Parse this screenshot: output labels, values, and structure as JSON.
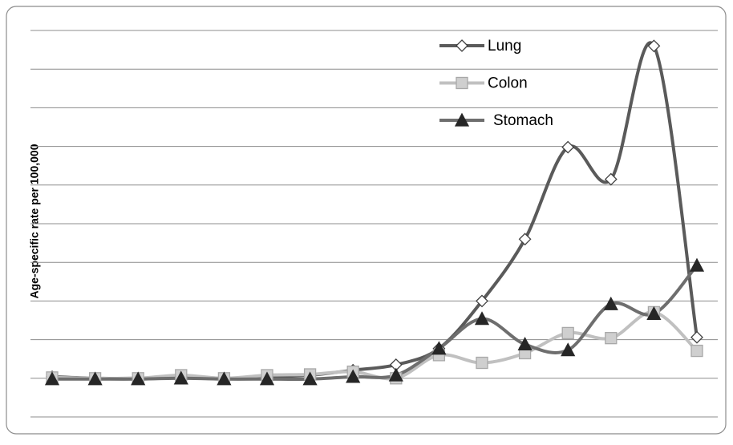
{
  "chart_data": {
    "type": "line",
    "ylabel": "Age-specific rate per 100,000",
    "categories": [
      null,
      null,
      null,
      null,
      null,
      null,
      null,
      null,
      null,
      null,
      null,
      null,
      null,
      null,
      null,
      null
    ],
    "series": [
      {
        "name": "Lung",
        "color": "#5a5a5a",
        "marker": "diamond",
        "marker_fill": "#ffffff",
        "marker_stroke": "#404040",
        "values": [
          1.04,
          1.0,
          1.0,
          1.04,
          1.0,
          1.04,
          1.08,
          1.21,
          1.35,
          1.77,
          3.0,
          4.6,
          6.98,
          6.15,
          9.6,
          2.06
        ]
      },
      {
        "name": "Colon",
        "color": "#c0c0c0",
        "marker": "square",
        "marker_fill": "#cfcfcf",
        "marker_stroke": "#a8a8a8",
        "values": [
          1.02,
          1.0,
          1.0,
          1.08,
          1.0,
          1.08,
          1.1,
          1.17,
          1.0,
          1.6,
          1.4,
          1.65,
          2.17,
          2.04,
          2.71,
          1.71
        ]
      },
      {
        "name": "Stomach",
        "color": "#6e6e6e",
        "marker": "triangle",
        "marker_fill": "#262626",
        "marker_stroke": "#262626",
        "values": [
          0.98,
          0.98,
          0.98,
          1.0,
          0.98,
          0.98,
          0.98,
          1.04,
          1.08,
          1.77,
          2.54,
          1.88,
          1.73,
          2.92,
          2.67,
          3.92
        ]
      }
    ],
    "ylim": [
      0,
      10
    ],
    "yticks": [
      0,
      1,
      2,
      3,
      4,
      5,
      6,
      7,
      8,
      9,
      10
    ],
    "grid": true,
    "smooth": true,
    "legend": "upper right"
  }
}
